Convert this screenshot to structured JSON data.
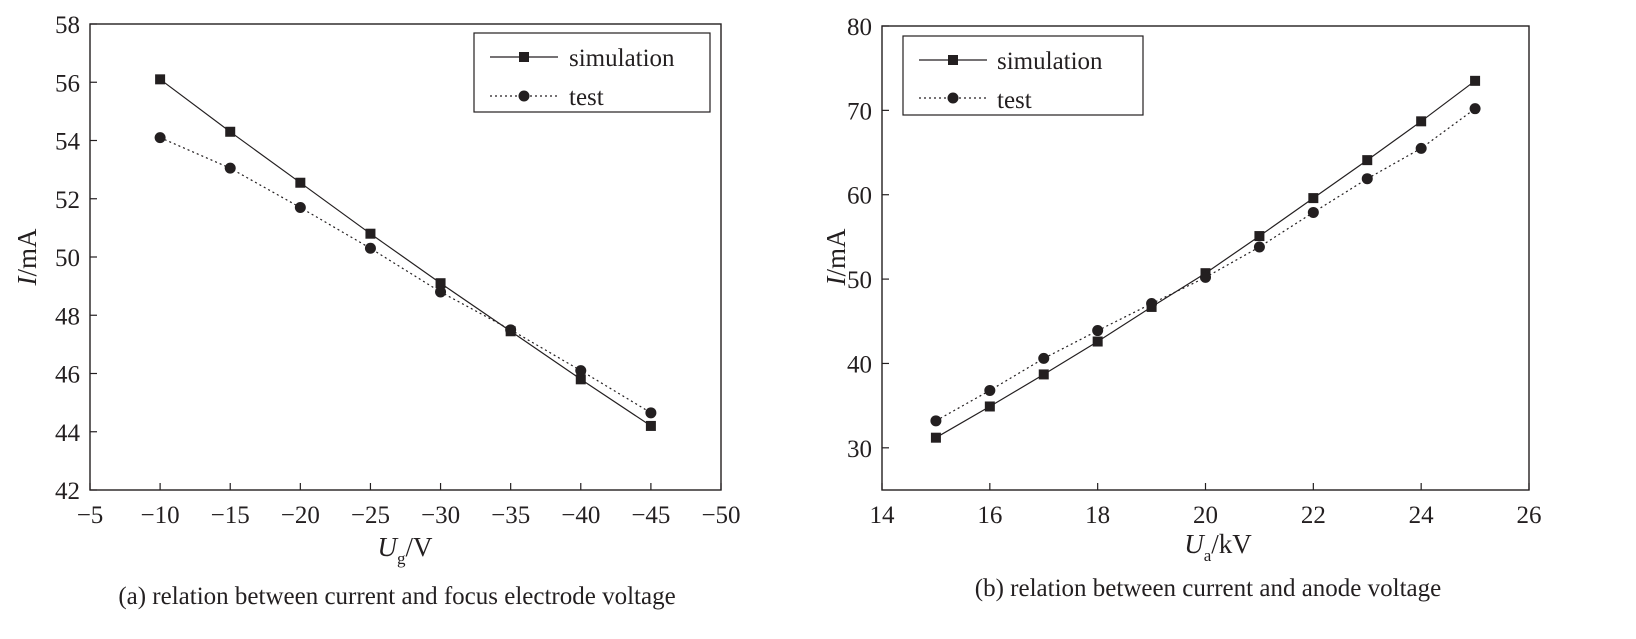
{
  "chart_data": [
    {
      "type": "line",
      "caption": "(a) relation between current and focus electrode voltage",
      "xlabel_main": "U",
      "xlabel_sub": "g",
      "xlabel_unit": "/V",
      "ylabel_main": "I",
      "ylabel_unit": "/mA",
      "xlim": [
        -5,
        -50
      ],
      "ylim": [
        42,
        58
      ],
      "xticks": [
        -5,
        -10,
        -15,
        -20,
        -25,
        -30,
        -35,
        -40,
        -45,
        -50
      ],
      "xtick_labels": [
        "−5",
        "−10",
        "−15",
        "−20",
        "−25",
        "−30",
        "−35",
        "−40",
        "−45",
        "−50"
      ],
      "yticks": [
        42,
        44,
        46,
        48,
        50,
        52,
        54,
        56,
        58
      ],
      "ytick_labels": [
        "42",
        "44",
        "46",
        "48",
        "50",
        "52",
        "54",
        "56",
        "58"
      ],
      "legend_position": "top-right",
      "x": [
        -10,
        -15,
        -20,
        -25,
        -30,
        -35,
        -40,
        -45
      ],
      "series": [
        {
          "name": "simulation",
          "marker": "square",
          "line": "solid",
          "values": [
            56.1,
            54.3,
            52.55,
            50.8,
            49.1,
            47.45,
            45.8,
            44.2
          ]
        },
        {
          "name": "test",
          "marker": "circle",
          "line": "dotted",
          "values": [
            54.1,
            53.05,
            51.7,
            50.3,
            48.8,
            47.5,
            46.1,
            44.65
          ]
        }
      ]
    },
    {
      "type": "line",
      "caption": "(b) relation between current and anode voltage",
      "xlabel_main": "U",
      "xlabel_sub": "a",
      "xlabel_unit": "/kV",
      "ylabel_main": "I",
      "ylabel_unit": "/mA",
      "xlim": [
        14,
        26
      ],
      "ylim": [
        25,
        80
      ],
      "xticks": [
        14,
        16,
        18,
        20,
        22,
        24,
        26
      ],
      "xtick_labels": [
        "14",
        "16",
        "18",
        "20",
        "22",
        "24",
        "26"
      ],
      "yticks": [
        30,
        40,
        50,
        60,
        70,
        80
      ],
      "ytick_labels": [
        "30",
        "40",
        "50",
        "60",
        "70",
        "80"
      ],
      "legend_position": "top-left",
      "x": [
        15,
        16,
        17,
        18,
        19,
        20,
        21,
        22,
        23,
        24,
        25
      ],
      "series": [
        {
          "name": "simulation",
          "marker": "square",
          "line": "solid",
          "values": [
            31.2,
            34.9,
            38.7,
            42.6,
            46.7,
            50.7,
            55.1,
            59.6,
            64.1,
            68.7,
            73.5
          ]
        },
        {
          "name": "test",
          "marker": "circle",
          "line": "dotted",
          "values": [
            33.2,
            36.8,
            40.6,
            43.9,
            47.1,
            50.2,
            53.8,
            57.9,
            61.9,
            65.5,
            70.2
          ]
        }
      ]
    }
  ]
}
